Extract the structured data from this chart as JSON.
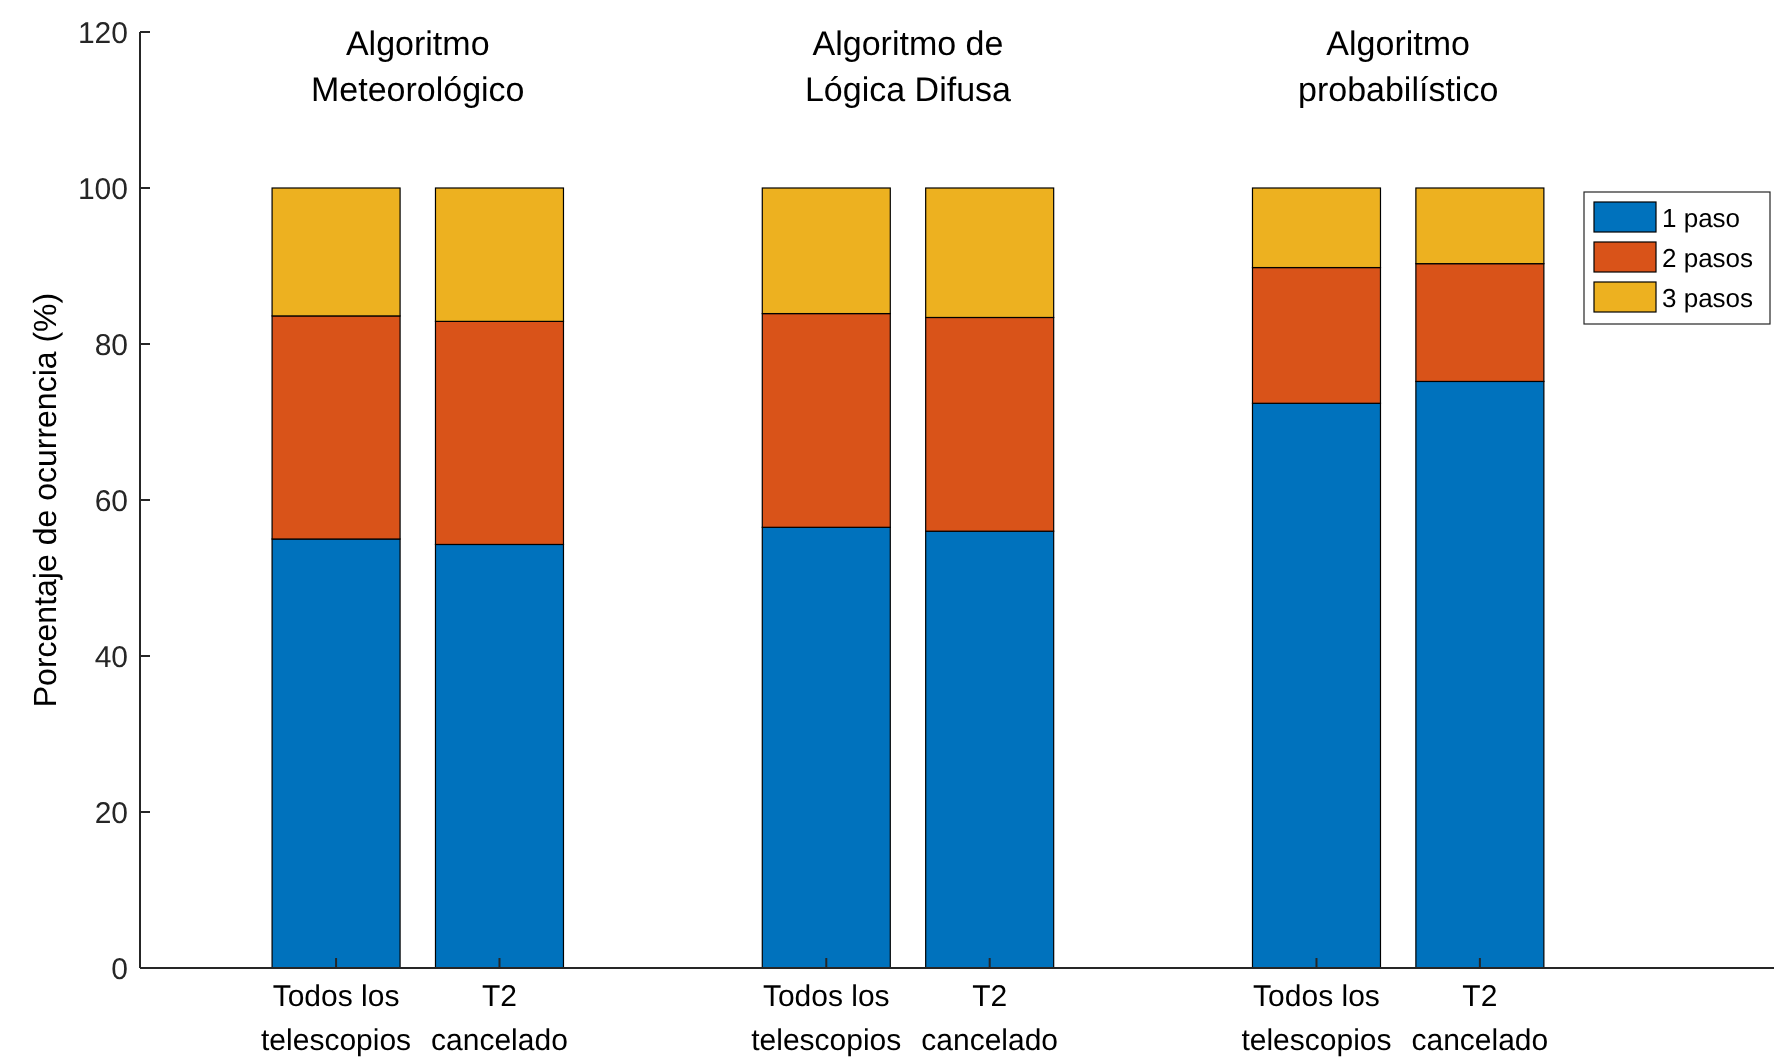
{
  "chart_data": {
    "type": "bar",
    "stacked": true,
    "ylabel": "Porcentaje de ocurrencia (%)",
    "categories": [
      "Todos los telescopios",
      "T2 cancelado",
      null,
      "Todos los telescopios",
      "T2 cancelado",
      null,
      "Todos los telescopios",
      "T2 cancelado"
    ],
    "series": [
      {
        "name": "1 paso",
        "color": "#0072bd",
        "values": [
          55,
          54.3,
          null,
          56.5,
          56,
          null,
          72.4,
          75.2
        ]
      },
      {
        "name": "2 pasos",
        "color": "#d95319",
        "values": [
          28.6,
          28.6,
          null,
          27.4,
          27.4,
          null,
          17.4,
          15.1
        ]
      },
      {
        "name": "3 pasos",
        "color": "#edb120",
        "values": [
          16.4,
          17.1,
          null,
          16.1,
          16.6,
          null,
          10.2,
          9.7
        ]
      }
    ],
    "annotations": [
      "Algoritmo Meteorológico",
      "Algoritmo de Lógica Difusa",
      "Algoritmo probabilístico"
    ],
    "ylim": [
      0,
      120
    ],
    "yticks": [
      0,
      20,
      40,
      60,
      80,
      100,
      120
    ],
    "legend": "top right",
    "grid": false
  }
}
